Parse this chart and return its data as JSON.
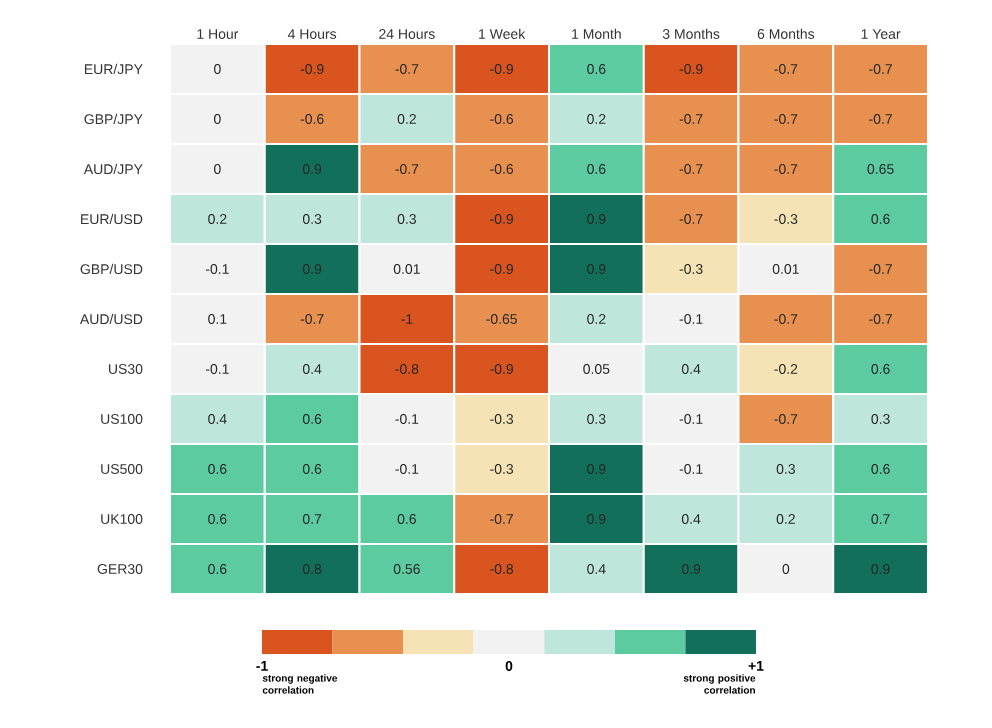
{
  "chart_data": {
    "type": "heatmap",
    "categories": [
      "1 Hour",
      "4 Hours",
      "24 Hours",
      "1 Week",
      "1 Month",
      "3 Months",
      "6 Months",
      "1 Year"
    ],
    "y_categories": [
      "EUR/JPY",
      "GBP/JPY",
      "AUD/JPY",
      "EUR/USD",
      "GBP/USD",
      "AUD/USD",
      "US30",
      "US100",
      "US500",
      "UK100",
      "GER30"
    ],
    "cells": [
      [
        0,
        -0.9,
        -0.7,
        -0.9,
        0.6,
        -0.9,
        -0.7,
        -0.7
      ],
      [
        0,
        -0.6,
        0.2,
        -0.6,
        0.2,
        -0.7,
        -0.7,
        -0.7
      ],
      [
        0,
        0.9,
        -0.7,
        -0.6,
        0.6,
        -0.7,
        -0.7,
        0.65
      ],
      [
        0.2,
        0.3,
        0.3,
        -0.9,
        0.9,
        -0.7,
        -0.3,
        0.6
      ],
      [
        -0.1,
        0.9,
        0.01,
        -0.9,
        0.9,
        -0.3,
        0.01,
        -0.7
      ],
      [
        0.1,
        -0.7,
        -1,
        -0.65,
        0.2,
        -0.1,
        -0.7,
        -0.7
      ],
      [
        -0.1,
        0.4,
        -0.8,
        -0.9,
        0.05,
        0.4,
        -0.2,
        0.6
      ],
      [
        0.4,
        0.6,
        -0.1,
        -0.3,
        0.3,
        -0.1,
        -0.7,
        0.3
      ],
      [
        0.6,
        0.6,
        -0.1,
        -0.3,
        0.9,
        -0.1,
        0.3,
        0.6
      ],
      [
        0.6,
        0.7,
        0.6,
        -0.7,
        0.9,
        0.4,
        0.2,
        0.7
      ],
      [
        0.6,
        0.8,
        0.56,
        -0.8,
        0.4,
        0.9,
        0,
        0.9
      ]
    ],
    "data_labels": true,
    "clim": [
      -1,
      1
    ],
    "cticks": [
      -1,
      0,
      {
        "value": 1,
        "label": "+1"
      }
    ],
    "annotations": [
      "strong negative correlation",
      "strong positive correlation"
    ]
  }
}
